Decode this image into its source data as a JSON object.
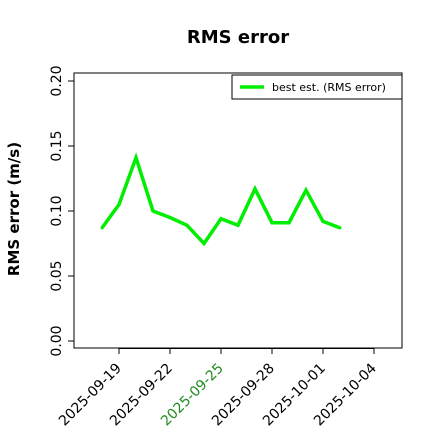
{
  "chart_data": {
    "type": "line",
    "title": "RMS error",
    "xlabel": "",
    "ylabel": "RMS error (m/s)",
    "ylim": [
      0.0,
      0.2
    ],
    "xlim": [
      "2025-09-16",
      "2025-10-06"
    ],
    "yticks": [
      "0.00",
      "0.05",
      "0.10",
      "0.15",
      "0.20"
    ],
    "xticks": [
      "2025-09-19",
      "2025-09-22",
      "2025-09-25",
      "2025-09-28",
      "2025-10-01",
      "2025-10-04"
    ],
    "highlight_xtick": "2025-09-25",
    "highlight_color": "#228B22",
    "grid": false,
    "legend": "top-right",
    "series": [
      {
        "name": "best est. (RMS error)",
        "color": "#00ee00",
        "x": [
          "2025-09-18",
          "2025-09-19",
          "2025-09-20",
          "2025-09-21",
          "2025-09-22",
          "2025-09-23",
          "2025-09-24",
          "2025-09-25",
          "2025-09-26",
          "2025-09-27",
          "2025-09-28",
          "2025-09-29",
          "2025-09-30",
          "2025-10-01",
          "2025-10-02"
        ],
        "values": [
          0.087,
          0.105,
          0.141,
          0.1,
          0.095,
          0.089,
          0.075,
          0.094,
          0.089,
          0.117,
          0.091,
          0.091,
          0.116,
          0.092,
          0.087
        ]
      }
    ]
  }
}
